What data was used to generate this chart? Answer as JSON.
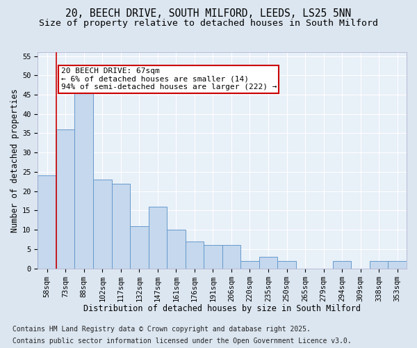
{
  "title_line1": "20, BEECH DRIVE, SOUTH MILFORD, LEEDS, LS25 5NN",
  "title_line2": "Size of property relative to detached houses in South Milford",
  "xlabel": "Distribution of detached houses by size in South Milford",
  "ylabel": "Number of detached properties",
  "categories": [
    "58sqm",
    "73sqm",
    "88sqm",
    "102sqm",
    "117sqm",
    "132sqm",
    "147sqm",
    "161sqm",
    "176sqm",
    "191sqm",
    "206sqm",
    "220sqm",
    "235sqm",
    "250sqm",
    "265sqm",
    "279sqm",
    "294sqm",
    "309sqm",
    "338sqm",
    "353sqm"
  ],
  "values": [
    24,
    36,
    46,
    23,
    22,
    11,
    16,
    10,
    7,
    6,
    6,
    2,
    3,
    2,
    0,
    0,
    2,
    0,
    2,
    2
  ],
  "bar_color": "#c5d8ed",
  "bar_edge_color": "#6699cc",
  "annotation_box_color": "#cc0000",
  "annotation_line1": "20 BEECH DRIVE: 67sqm",
  "annotation_line2": "← 6% of detached houses are smaller (14)",
  "annotation_line3": "94% of semi-detached houses are larger (222) →",
  "vline_x": 0.5,
  "ylim": [
    0,
    56
  ],
  "yticks": [
    0,
    5,
    10,
    15,
    20,
    25,
    30,
    35,
    40,
    45,
    50,
    55
  ],
  "footer_line1": "Contains HM Land Registry data © Crown copyright and database right 2025.",
  "footer_line2": "Contains public sector information licensed under the Open Government Licence v3.0.",
  "bg_color": "#dce6f0",
  "plot_bg_color": "#e8f0f8",
  "title_fontsize": 10.5,
  "subtitle_fontsize": 9.5,
  "axis_label_fontsize": 8.5,
  "tick_fontsize": 7.5,
  "footer_fontsize": 7,
  "annotation_fontsize": 8
}
